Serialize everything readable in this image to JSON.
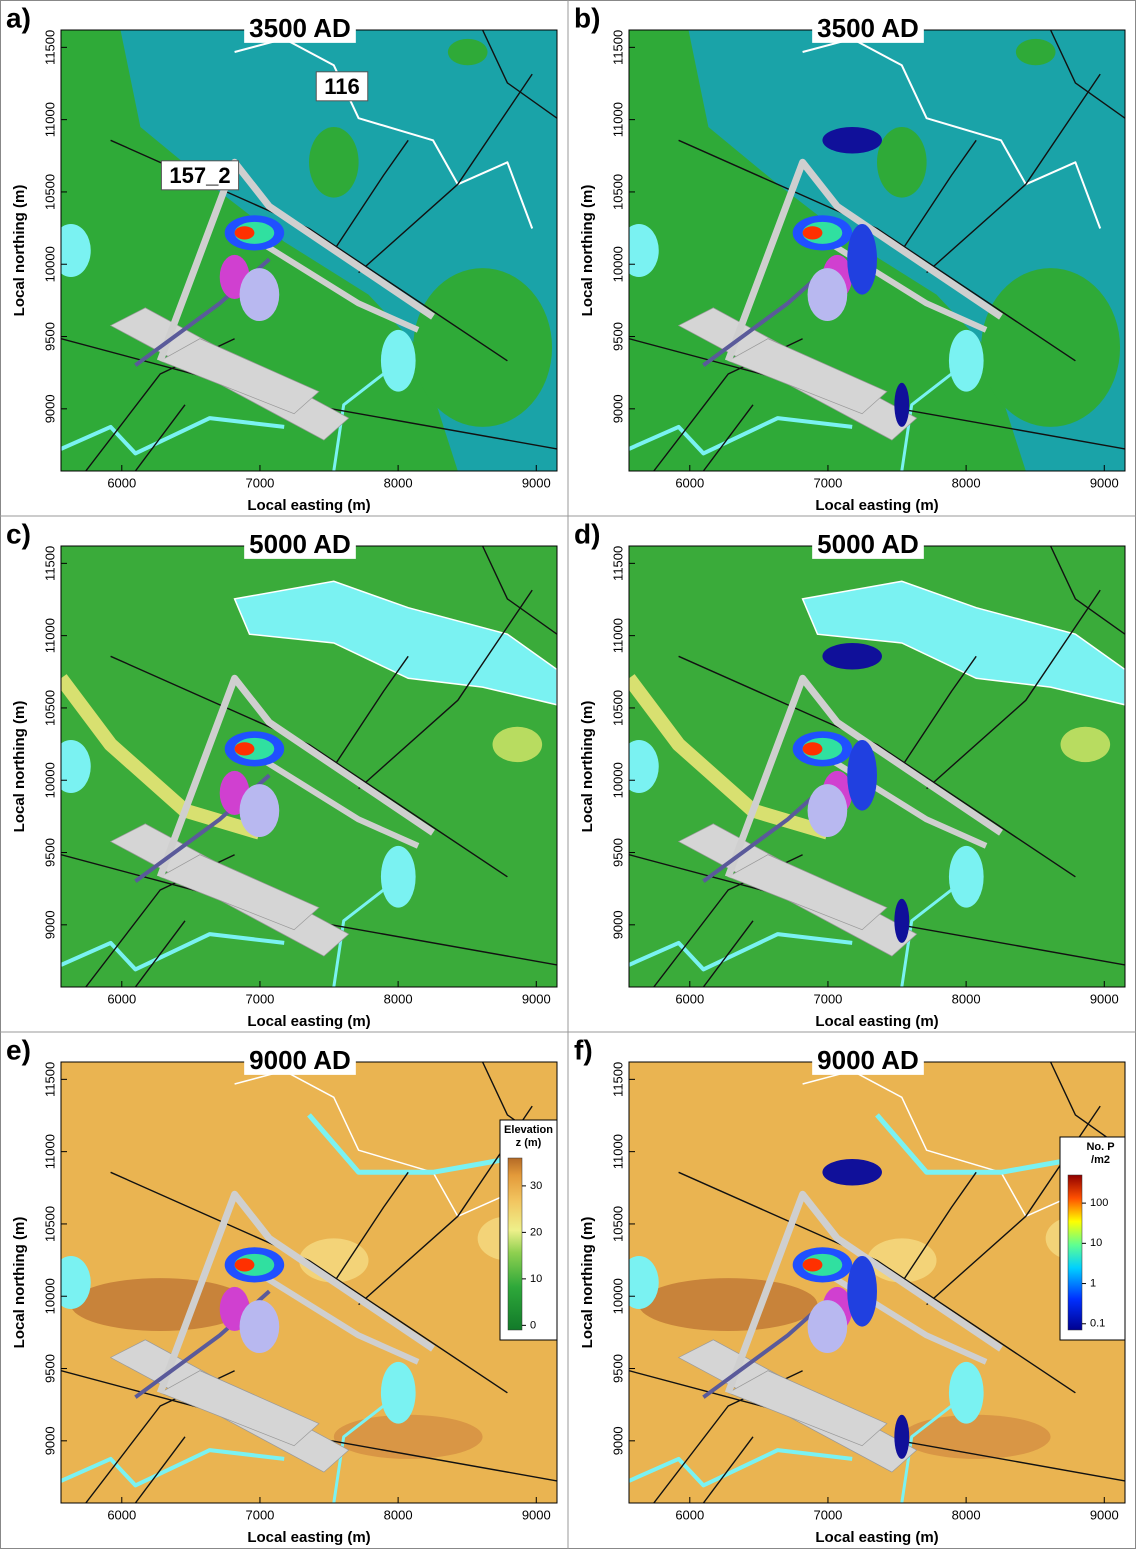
{
  "chart_data": [
    {
      "type": "contour",
      "label": "a)",
      "title": "3500 AD",
      "xlabel": "Local easting (m)",
      "ylabel": "Local northing (m)",
      "xlim": [
        5560,
        9150
      ],
      "ylim": [
        8570,
        11620
      ],
      "xticks": [
        6000,
        7000,
        8000,
        9000
      ],
      "yticks": [
        9000,
        9500,
        10000,
        10500,
        11000,
        11500
      ],
      "annotations": [
        "116",
        "157_2"
      ]
    },
    {
      "type": "contour",
      "label": "b)",
      "title": "3500 AD",
      "xlabel": "Local easting (m)",
      "ylabel": "Local northing (m)",
      "xlim": [
        5560,
        9150
      ],
      "ylim": [
        8570,
        11620
      ],
      "xticks": [
        6000,
        7000,
        8000,
        9000
      ],
      "yticks": [
        9000,
        9500,
        10000,
        10500,
        11000,
        11500
      ]
    },
    {
      "type": "contour",
      "label": "c)",
      "title": "5000 AD",
      "xlabel": "Local easting (m)",
      "ylabel": "Local northing (m)",
      "xlim": [
        5560,
        9150
      ],
      "ylim": [
        8570,
        11620
      ],
      "xticks": [
        6000,
        7000,
        8000,
        9000
      ],
      "yticks": [
        9000,
        9500,
        10000,
        10500,
        11000,
        11500
      ]
    },
    {
      "type": "contour",
      "label": "d)",
      "title": "5000 AD",
      "xlabel": "Local easting (m)",
      "ylabel": "Local northing (m)",
      "xlim": [
        5560,
        9150
      ],
      "ylim": [
        8570,
        11620
      ],
      "xticks": [
        6000,
        7000,
        8000,
        9000
      ],
      "yticks": [
        9000,
        9500,
        10000,
        10500,
        11000,
        11500
      ]
    },
    {
      "type": "contour",
      "label": "e)",
      "title": "9000 AD",
      "xlabel": "Local easting (m)",
      "ylabel": "Local northing (m)",
      "xlim": [
        5560,
        9150
      ],
      "ylim": [
        8570,
        11620
      ],
      "xticks": [
        6000,
        7000,
        8000,
        9000
      ],
      "yticks": [
        9000,
        9500,
        10000,
        10500,
        11000,
        11500
      ],
      "colorbar": {
        "title": [
          "Elevation",
          "z (m)"
        ],
        "lim": [
          -1,
          36
        ],
        "ticks": [
          0,
          10,
          20,
          30
        ]
      }
    },
    {
      "type": "contour",
      "label": "f)",
      "title": "9000 AD",
      "xlabel": "Local easting (m)",
      "ylabel": "Local northing (m)",
      "xlim": [
        5560,
        9150
      ],
      "ylim": [
        8570,
        11620
      ],
      "xticks": [
        6000,
        7000,
        8000,
        9000
      ],
      "yticks": [
        9000,
        9500,
        10000,
        10500,
        11000,
        11500
      ],
      "colorbar": {
        "title": [
          "No. P",
          "/m2"
        ],
        "log": true,
        "lim": [
          0.07,
          500
        ],
        "ticks": [
          0.1,
          1,
          10,
          100
        ]
      }
    }
  ]
}
